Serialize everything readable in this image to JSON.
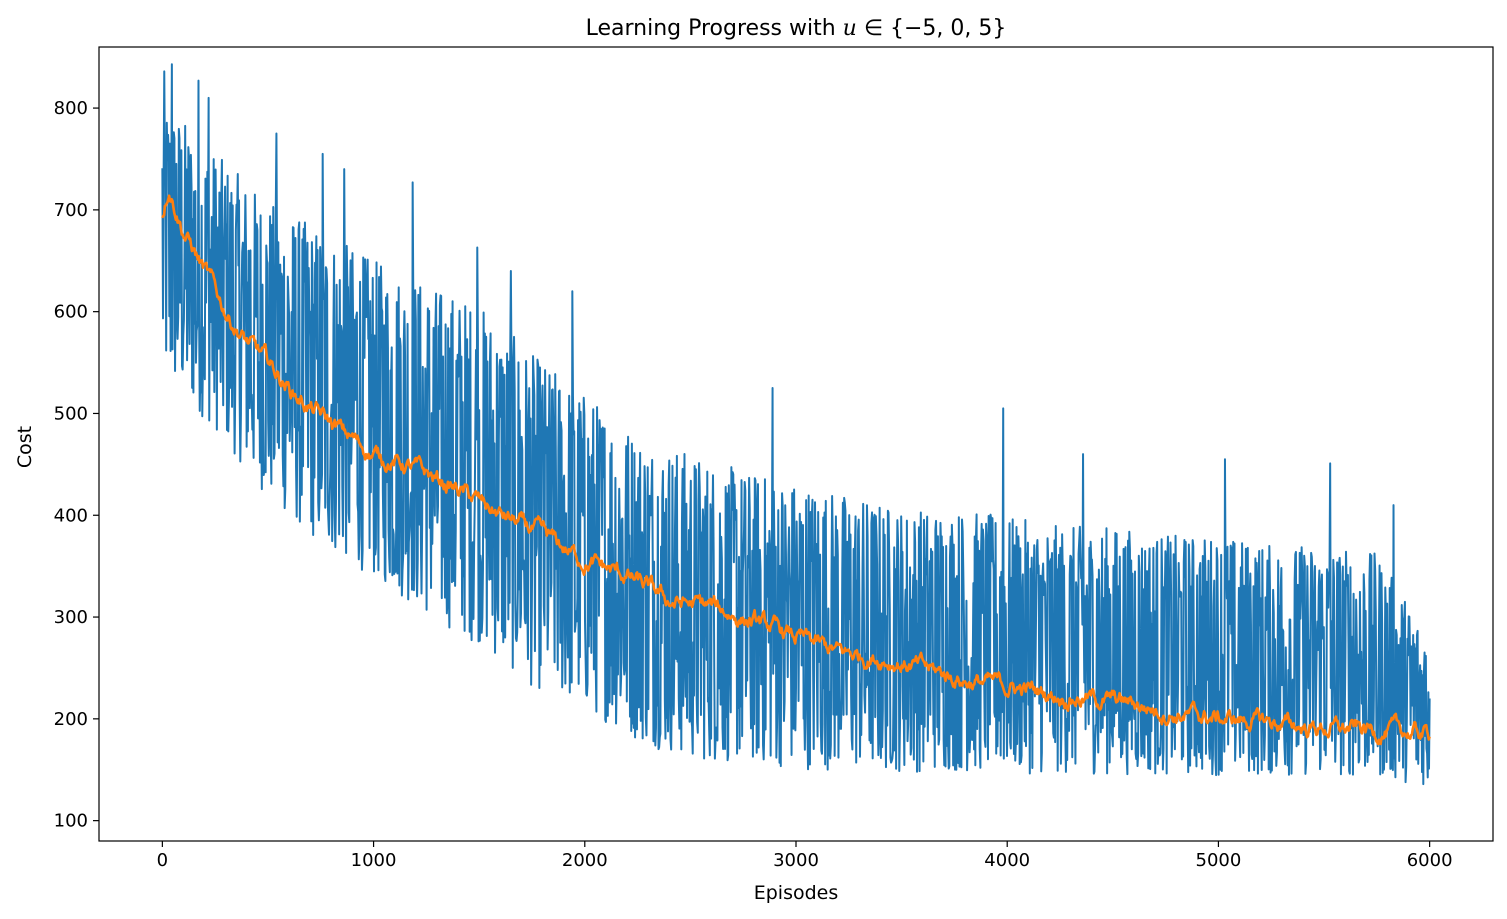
{
  "colors": {
    "raw": "#1f77b4",
    "smooth": "#ff7f0e",
    "axis": "#000000",
    "background": "#ffffff"
  },
  "chart_data": {
    "type": "line",
    "title": {
      "prefix": "Learning Progress with ",
      "variable": "u",
      "suffix": " ∈ {−5, 0, 5}"
    },
    "xlabel": "Episodes",
    "ylabel": "Cost",
    "xlim": [
      -300,
      6300
    ],
    "ylim": [
      80,
      860
    ],
    "grid": false,
    "legend": "none",
    "xticks": [
      {
        "value": 0,
        "label": "0"
      },
      {
        "value": 1000,
        "label": "1000"
      },
      {
        "value": 2000,
        "label": "2000"
      },
      {
        "value": 3000,
        "label": "3000"
      },
      {
        "value": 4000,
        "label": "4000"
      },
      {
        "value": 5000,
        "label": "5000"
      },
      {
        "value": 6000,
        "label": "6000"
      }
    ],
    "yticks": [
      {
        "value": 100,
        "label": "100"
      },
      {
        "value": 200,
        "label": "200"
      },
      {
        "value": 300,
        "label": "300"
      },
      {
        "value": 400,
        "label": "400"
      },
      {
        "value": 500,
        "label": "500"
      },
      {
        "value": 600,
        "label": "600"
      },
      {
        "value": 700,
        "label": "700"
      },
      {
        "value": 800,
        "label": "800"
      }
    ],
    "series": [
      {
        "color": "#1f77b4",
        "kind": "raw cost per episode (dense, noisy)",
        "x": [
          0,
          250,
          500,
          750,
          1000,
          1250,
          1500,
          1750,
          2000,
          2250,
          2500,
          2750,
          3000,
          3250,
          3500,
          3750,
          4000,
          4250,
          4500,
          4750,
          5000,
          5250,
          5500,
          5750,
          6000
        ],
        "upper": [
          845,
          790,
          745,
          720,
          690,
          670,
          650,
          600,
          560,
          520,
          500,
          480,
          470,
          455,
          440,
          440,
          430,
          420,
          420,
          410,
          410,
          400,
          400,
          390,
          300
        ],
        "lower": [
          500,
          450,
          380,
          330,
          300,
          260,
          230,
          190,
          170,
          140,
          120,
          120,
          115,
          115,
          115,
          115,
          115,
          115,
          115,
          115,
          115,
          115,
          115,
          115,
          115
        ],
        "peaks": [
          {
            "x": 10,
            "y": 836
          },
          {
            "x": 45,
            "y": 843
          },
          {
            "x": 170,
            "y": 827
          },
          {
            "x": 220,
            "y": 810
          },
          {
            "x": 540,
            "y": 775
          },
          {
            "x": 760,
            "y": 755
          },
          {
            "x": 860,
            "y": 740
          },
          {
            "x": 1185,
            "y": 727
          },
          {
            "x": 1490,
            "y": 663
          },
          {
            "x": 1650,
            "y": 640
          },
          {
            "x": 1940,
            "y": 620
          },
          {
            "x": 2890,
            "y": 525
          },
          {
            "x": 3980,
            "y": 505
          },
          {
            "x": 4360,
            "y": 460
          },
          {
            "x": 5030,
            "y": 455
          },
          {
            "x": 5530,
            "y": 451
          },
          {
            "x": 5830,
            "y": 410
          }
        ]
      },
      {
        "color": "#ff7f0e",
        "kind": "moving average",
        "x": [
          0,
          30,
          100,
          200,
          300,
          400,
          500,
          600,
          700,
          800,
          900,
          1000,
          1200,
          1400,
          1600,
          1800,
          2000,
          2200,
          2400,
          2600,
          2800,
          3000,
          3200,
          3400,
          3600,
          3800,
          4000,
          4200,
          4400,
          4600,
          4800,
          5000,
          5200,
          5400,
          5600,
          5800,
          6000
        ],
        "y": [
          695,
          725,
          680,
          640,
          600,
          570,
          550,
          525,
          505,
          490,
          475,
          460,
          445,
          425,
          400,
          380,
          355,
          340,
          315,
          310,
          295,
          280,
          265,
          260,
          250,
          238,
          232,
          225,
          220,
          215,
          205,
          200,
          198,
          192,
          190,
          188,
          185
        ]
      }
    ]
  }
}
